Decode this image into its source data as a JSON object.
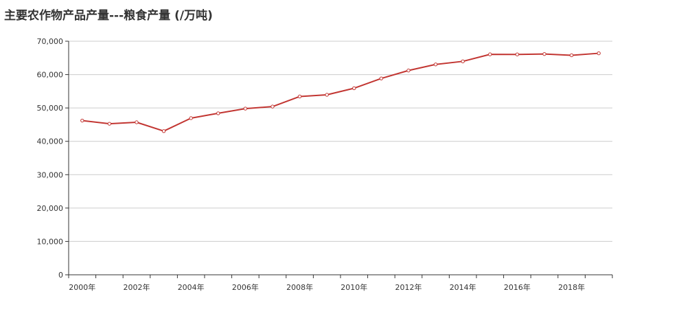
{
  "chart_data": {
    "type": "line",
    "title": "主要农作物产品产量---粮食产量 (/万吨)",
    "xlabel": "",
    "ylabel": "",
    "ylim": [
      0,
      70000
    ],
    "y_ticks": [
      "0",
      "10,000",
      "20,000",
      "30,000",
      "40,000",
      "50,000",
      "60,000",
      "70,000"
    ],
    "x": [
      "2000年",
      "2001年",
      "2002年",
      "2003年",
      "2004年",
      "2005年",
      "2006年",
      "2007年",
      "2008年",
      "2009年",
      "2010年",
      "2011年",
      "2012年",
      "2013年",
      "2014年",
      "2015年",
      "2016年",
      "2017年",
      "2018年",
      "2019年"
    ],
    "x_tick_labels": [
      "2000年",
      "2002年",
      "2004年",
      "2006年",
      "2008年",
      "2010年",
      "2012年",
      "2014年",
      "2016年",
      "2018年"
    ],
    "series": [
      {
        "values": [
          46218,
          45264,
          45706,
          43070,
          46947,
          48402,
          49804,
          50414,
          53434,
          53941,
          55911,
          58849,
          61223,
          63048,
          63965,
          66060,
          66044,
          66161,
          65789,
          66384
        ],
        "color": "#c23531"
      }
    ],
    "grid": true,
    "legend": "none"
  }
}
